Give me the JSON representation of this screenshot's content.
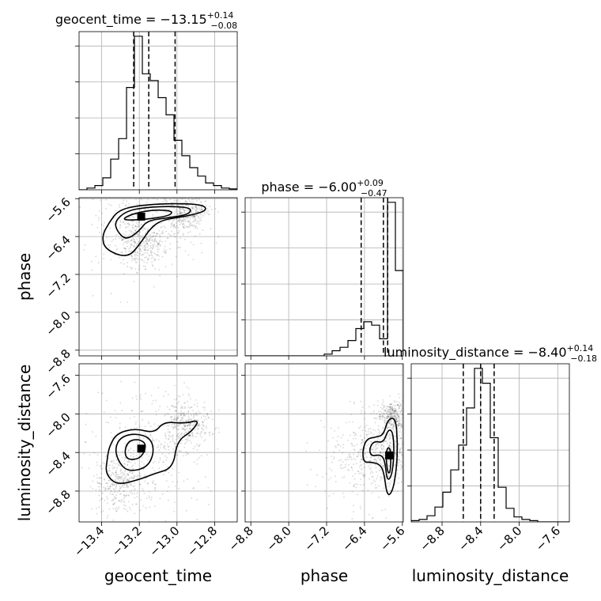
{
  "chart_data": {
    "type": "corner",
    "parameters": [
      "geocent_time",
      "phase",
      "luminosity_distance"
    ],
    "axis_labels": {
      "geocent_time": "geocent_time",
      "phase": "phase",
      "luminosity_distance": "luminosity_distance"
    },
    "ranges": {
      "geocent_time": [
        -13.52,
        -12.68
      ],
      "phase": [
        -8.92,
        -5.58
      ],
      "luminosity_distance": [
        -9.12,
        -7.48
      ]
    },
    "ticks": {
      "geocent_time": [
        -13.4,
        -13.2,
        -13.0,
        -12.8
      ],
      "phase": [
        -8.8,
        -8.0,
        -7.2,
        -6.4,
        -5.6
      ],
      "luminosity_distance": [
        -8.8,
        -8.4,
        -8.0,
        -7.6
      ]
    },
    "tick_labels": {
      "geocent_time": [
        "−13.4",
        "−13.2",
        "−13.0",
        "−12.8"
      ],
      "phase": [
        "−8.8",
        "−8.0",
        "−7.2",
        "−6.4",
        "−5.6"
      ],
      "luminosity_distance": [
        "−8.8",
        "−8.4",
        "−8.0",
        "−7.6"
      ]
    },
    "titles": {
      "geocent_time": {
        "median": "−13.15",
        "plus": "+0.14",
        "minus": "−0.08",
        "prefix": "geocent_time = "
      },
      "phase": {
        "median": "−6.00",
        "plus": "+0.09",
        "minus": "−0.47",
        "prefix": "phase = "
      },
      "luminosity_distance": {
        "median": "−8.40",
        "plus": "+0.14",
        "minus": "−0.18",
        "prefix": "luminosity_distance = "
      }
    },
    "quantiles": {
      "geocent_time": [
        -13.23,
        -13.15,
        -13.01
      ],
      "phase": [
        -6.47,
        -6.0,
        -5.91
      ],
      "luminosity_distance": [
        -8.58,
        -8.4,
        -8.26
      ]
    },
    "histograms": {
      "geocent_time": {
        "edges": [
          -13.52,
          -13.478,
          -13.436,
          -13.394,
          -13.352,
          -13.31,
          -13.268,
          -13.226,
          -13.184,
          -13.142,
          -13.1,
          -13.058,
          -13.016,
          -12.974,
          -12.932,
          -12.89,
          -12.848,
          -12.806,
          -12.764,
          -12.722,
          -12.68
        ],
        "counts": [
          0,
          2,
          5,
          14,
          36,
          60,
          120,
          180,
          136,
          128,
          108,
          88,
          58,
          40,
          26,
          16,
          8,
          5,
          2,
          1
        ]
      },
      "phase": {
        "edges": [
          -8.92,
          -8.753,
          -8.586,
          -8.419,
          -8.252,
          -8.085,
          -7.918,
          -7.751,
          -7.584,
          -7.417,
          -7.25,
          -7.083,
          -6.916,
          -6.749,
          -6.582,
          -6.415,
          -6.248,
          -6.081,
          -5.914,
          -5.747,
          -5.58
        ],
        "counts": [
          0,
          0,
          0,
          0,
          0,
          0,
          0,
          0,
          0,
          0,
          1,
          3,
          5,
          9,
          16,
          20,
          18,
          10,
          90,
          50
        ]
      },
      "luminosity_distance": {
        "edges": [
          -9.12,
          -9.038,
          -8.956,
          -8.874,
          -8.792,
          -8.71,
          -8.628,
          -8.546,
          -8.464,
          -8.382,
          -8.3,
          -8.218,
          -8.136,
          -8.054,
          -7.972,
          -7.89,
          -7.808,
          -7.726,
          -7.644,
          -7.562,
          -7.48
        ],
        "counts": [
          1,
          2,
          5,
          12,
          24,
          42,
          62,
          92,
          124,
          112,
          68,
          28,
          11,
          4,
          2,
          1,
          0,
          0,
          0,
          0
        ]
      }
    },
    "posterior_peaks": {
      "phase_vs_geocent_time": {
        "x": -13.19,
        "y": -5.98
      },
      "luminosity_distance_vs_geocent_time": {
        "x": -13.19,
        "y": -8.36
      },
      "luminosity_distance_vs_phase": {
        "x": -5.88,
        "y": -8.43
      }
    },
    "contours": {
      "phase_vs_geocent_time": [
        [
          [
            -13.3,
            -6.06
          ],
          [
            -13.24,
            -5.92
          ],
          [
            -13.12,
            -5.83
          ],
          [
            -13.02,
            -5.86
          ],
          [
            -13.04,
            -5.96
          ],
          [
            -13.16,
            -6.04
          ]
        ],
        [
          [
            -13.33,
            -6.08
          ],
          [
            -13.27,
            -5.86
          ],
          [
            -13.16,
            -5.78
          ],
          [
            -13.02,
            -5.76
          ],
          [
            -12.92,
            -5.8
          ],
          [
            -12.94,
            -5.94
          ],
          [
            -13.06,
            -6.01
          ],
          [
            -13.16,
            -6.07
          ],
          [
            -13.2,
            -6.28
          ],
          [
            -13.27,
            -6.48
          ],
          [
            -13.32,
            -6.28
          ]
        ],
        [
          [
            -13.36,
            -6.1
          ],
          [
            -13.31,
            -5.84
          ],
          [
            -13.2,
            -5.74
          ],
          [
            -13.04,
            -5.7
          ],
          [
            -12.86,
            -5.72
          ],
          [
            -12.84,
            -5.86
          ],
          [
            -12.96,
            -5.98
          ],
          [
            -13.08,
            -6.05
          ],
          [
            -13.14,
            -6.22
          ],
          [
            -13.19,
            -6.52
          ],
          [
            -13.26,
            -6.86
          ],
          [
            -13.38,
            -6.68
          ],
          [
            -13.4,
            -6.4
          ]
        ]
      ],
      "luminosity_distance_vs_geocent_time": [
        [
          [
            -13.28,
            -8.4
          ],
          [
            -13.26,
            -8.28
          ],
          [
            -13.2,
            -8.26
          ],
          [
            -13.16,
            -8.32
          ],
          [
            -13.19,
            -8.46
          ],
          [
            -13.26,
            -8.48
          ]
        ],
        [
          [
            -13.33,
            -8.36
          ],
          [
            -13.3,
            -8.24
          ],
          [
            -13.22,
            -8.2
          ],
          [
            -13.14,
            -8.25
          ],
          [
            -13.12,
            -8.4
          ],
          [
            -13.16,
            -8.56
          ],
          [
            -13.26,
            -8.6
          ],
          [
            -13.31,
            -8.5
          ]
        ],
        [
          [
            -13.36,
            -8.34
          ],
          [
            -13.32,
            -8.2
          ],
          [
            -13.22,
            -8.15
          ],
          [
            -13.12,
            -8.2
          ],
          [
            -13.07,
            -8.08
          ],
          [
            -12.96,
            -8.1
          ],
          [
            -12.88,
            -8.06
          ],
          [
            -12.92,
            -8.18
          ],
          [
            -13.0,
            -8.28
          ],
          [
            -13.02,
            -8.56
          ],
          [
            -13.12,
            -8.62
          ],
          [
            -13.2,
            -8.68
          ],
          [
            -13.32,
            -8.74
          ],
          [
            -13.38,
            -8.62
          ],
          [
            -13.37,
            -8.46
          ]
        ]
      ],
      "luminosity_distance_vs_phase": [
        [
          [
            -5.94,
            -8.4
          ],
          [
            -5.9,
            -8.34
          ],
          [
            -5.84,
            -8.38
          ],
          [
            -5.85,
            -8.6
          ],
          [
            -5.9,
            -8.62
          ],
          [
            -5.94,
            -8.5
          ]
        ],
        [
          [
            -6.3,
            -8.36
          ],
          [
            -6.2,
            -8.28
          ],
          [
            -6.0,
            -8.3
          ],
          [
            -5.9,
            -8.16
          ],
          [
            -5.8,
            -8.18
          ],
          [
            -5.77,
            -8.4
          ],
          [
            -5.82,
            -8.64
          ],
          [
            -5.92,
            -8.7
          ],
          [
            -5.97,
            -8.48
          ],
          [
            -6.06,
            -8.42
          ],
          [
            -6.26,
            -8.44
          ]
        ],
        [
          [
            -6.44,
            -8.38
          ],
          [
            -6.36,
            -8.26
          ],
          [
            -6.16,
            -8.24
          ],
          [
            -6.0,
            -8.22
          ],
          [
            -5.9,
            -8.05
          ],
          [
            -5.74,
            -8.04
          ],
          [
            -5.7,
            -8.3
          ],
          [
            -5.72,
            -8.56
          ],
          [
            -5.8,
            -8.8
          ],
          [
            -5.92,
            -8.86
          ],
          [
            -5.99,
            -8.6
          ],
          [
            -6.08,
            -8.52
          ],
          [
            -6.28,
            -8.5
          ],
          [
            -6.42,
            -8.5
          ]
        ]
      ]
    },
    "samples_scatter": {
      "phase_vs_geocent_time": [
        [
          -13.18,
          -6.05,
          0.12
        ],
        [
          -12.95,
          -5.87,
          0.045
        ],
        [
          -13.2,
          -6.55,
          0.06
        ]
      ],
      "luminosity_distance_vs_geocent_time": [
        [
          -13.15,
          -8.38,
          0.13
        ],
        [
          -12.95,
          -8.1,
          0.055
        ],
        [
          -13.3,
          -8.72,
          0.06
        ]
      ],
      "luminosity_distance_vs_phase": [
        [
          -5.86,
          -8.4,
          0.06
        ],
        [
          -6.35,
          -8.46,
          0.11
        ],
        [
          -5.8,
          -8.02,
          0.035
        ]
      ]
    },
    "grid": true,
    "legend": "none"
  }
}
